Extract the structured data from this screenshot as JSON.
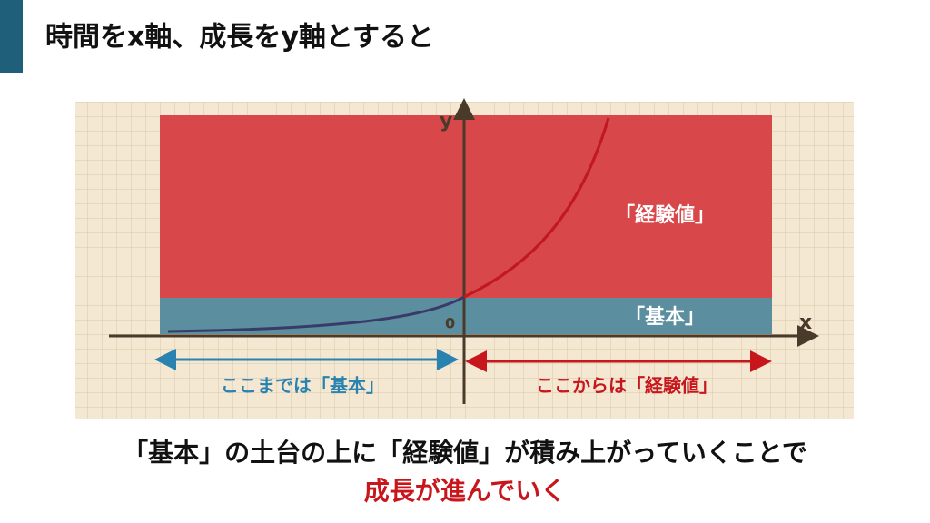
{
  "title": "時間をx軸、成長をy軸とすると",
  "diagram": {
    "region_experience": "「経験値」",
    "region_basic": "「基本」",
    "axis_x": "x",
    "axis_y": "y",
    "origin": "0",
    "arrow_left": "ここまでは「基本」",
    "arrow_right": "ここからは「経験値」"
  },
  "caption": {
    "line1": "「基本」の土台の上に「経験値」が積み上がっていくことで",
    "line2": "成長が進んでいく"
  }
}
